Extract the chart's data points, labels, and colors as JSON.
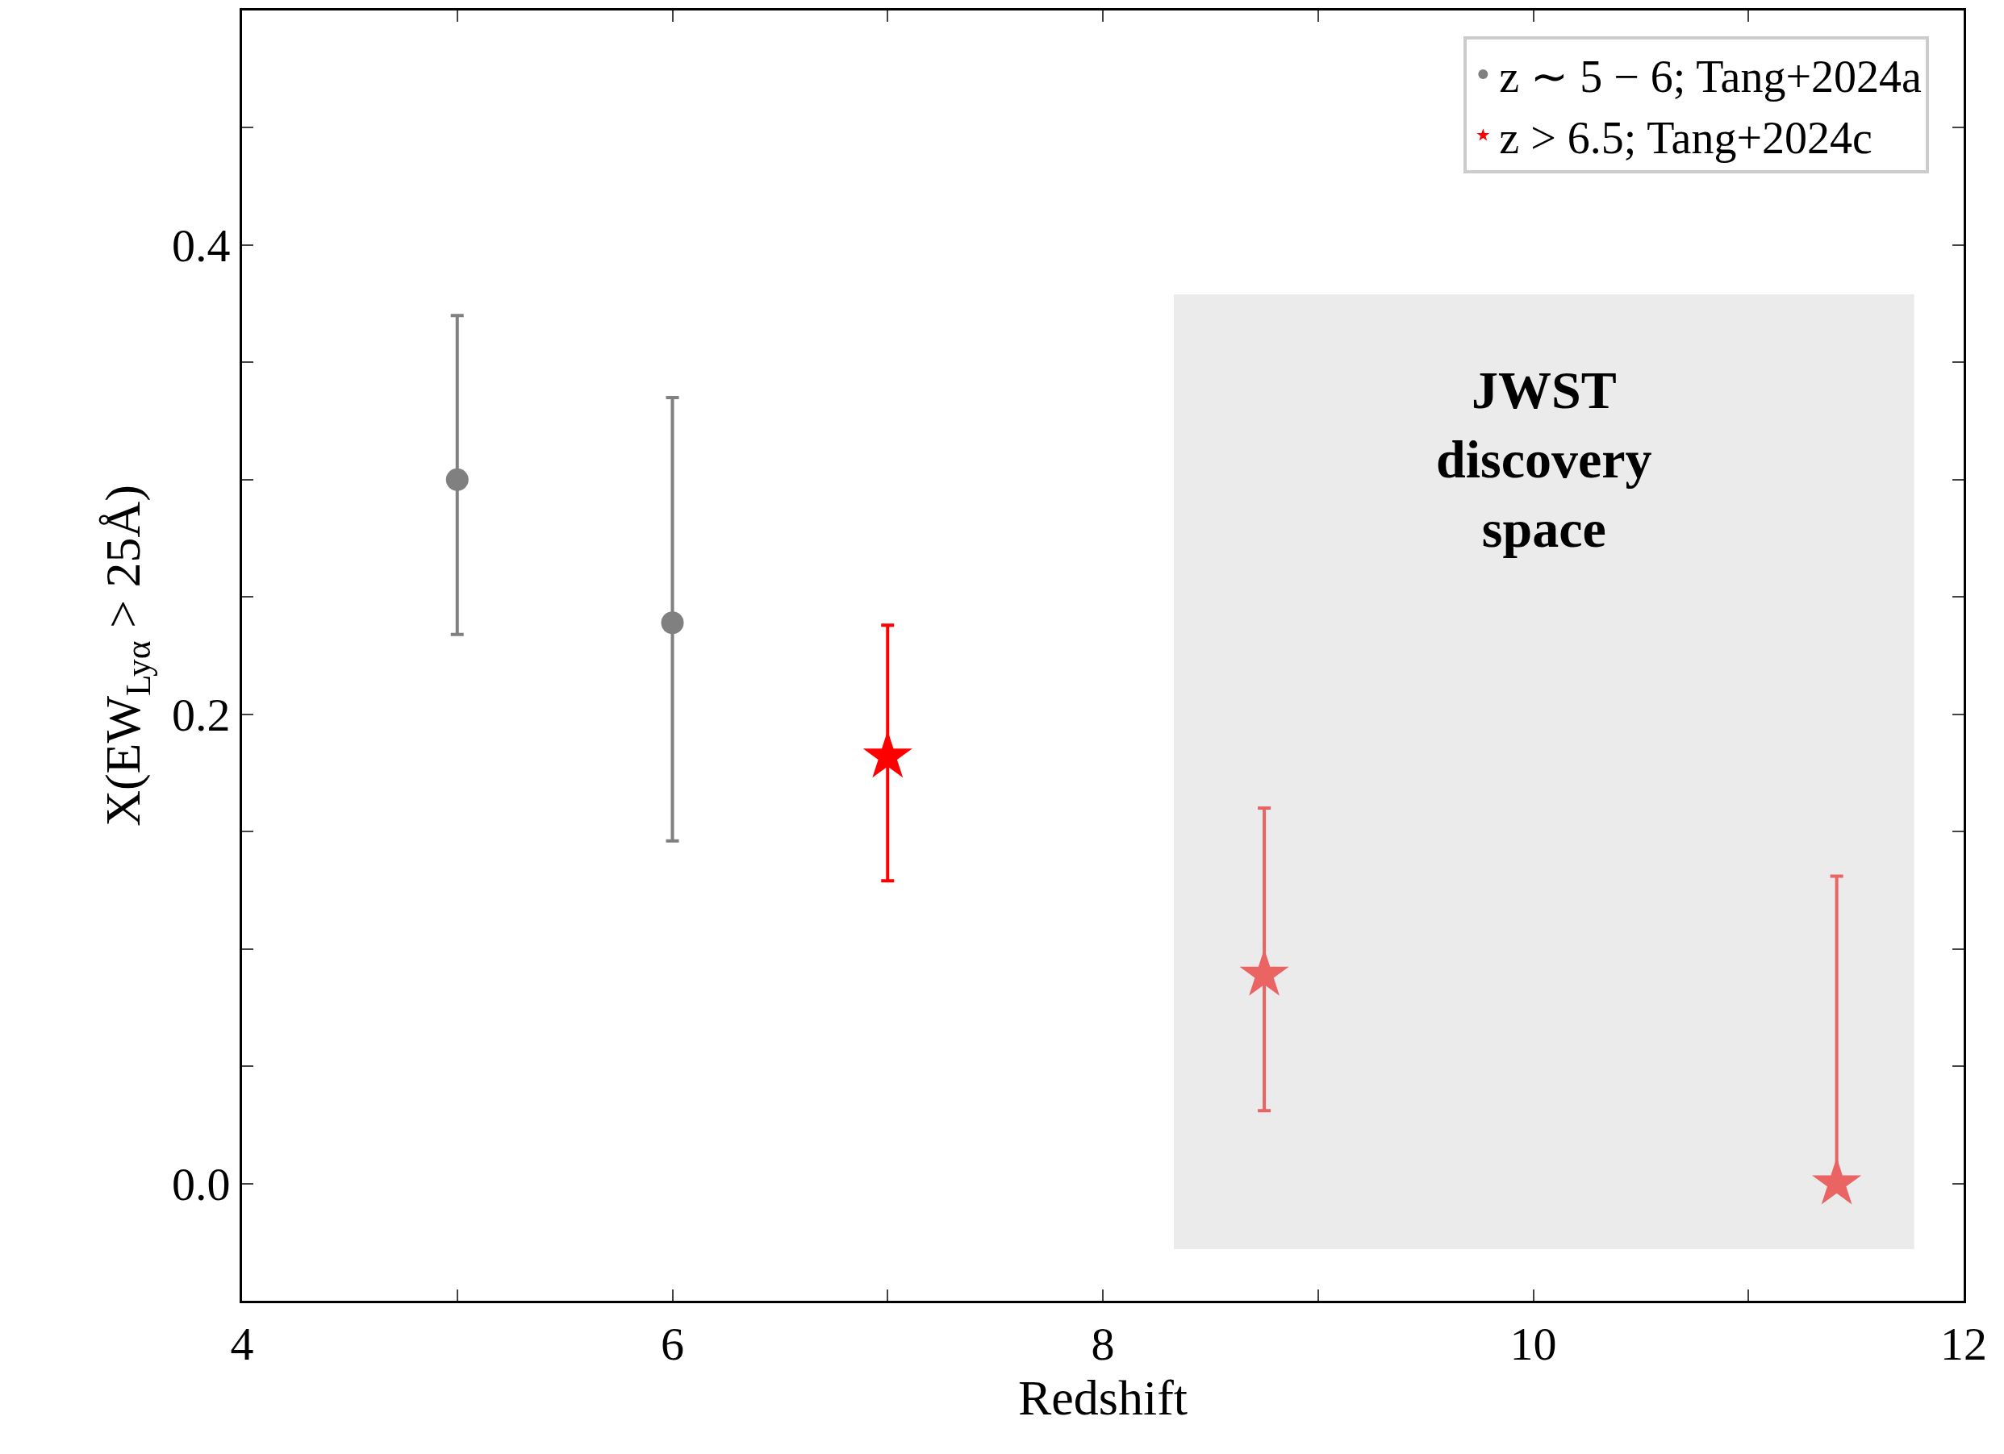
{
  "chart_data": {
    "type": "scatter",
    "xlabel": "Redshift",
    "ylabel": "X(EW$_{Lyα}$ > 25Å)",
    "xlim": [
      4,
      12
    ],
    "ylim": [
      -0.05,
      0.5
    ],
    "xticks": [
      4,
      {
        "value": 5,
        "label": null
      },
      6,
      {
        "value": 7,
        "label": null
      },
      8,
      {
        "value": 9,
        "label": null
      },
      10,
      {
        "value": 11,
        "label": null
      },
      12
    ],
    "yticks": [
      {
        "value": -0.05,
        "label": null
      },
      {
        "value": 0.0,
        "label": "0.0"
      },
      {
        "value": 0.05,
        "label": null
      },
      {
        "value": 0.1,
        "label": null
      },
      {
        "value": 0.15,
        "label": null
      },
      {
        "value": 0.2,
        "label": "0.2"
      },
      {
        "value": 0.25,
        "label": null
      },
      {
        "value": 0.3,
        "label": null
      },
      {
        "value": 0.35,
        "label": null
      },
      {
        "value": 0.4,
        "label": "0.4"
      },
      {
        "value": 0.45,
        "label": null
      }
    ],
    "series": [
      {
        "name": "z ∼ 5 − 6; Tang+2024a",
        "color": "#808080",
        "marker": "circle",
        "x": [
          5.0,
          6.0
        ],
        "values": [
          0.3,
          0.239
        ],
        "errors": [
          [
            0.234,
            0.37
          ],
          [
            0.146,
            0.335
          ]
        ]
      },
      {
        "name": "z > 6.5; Tang+2024c",
        "color": "#ff0000",
        "marker": "star",
        "x": [
          7.0
        ],
        "values": [
          0.182
        ],
        "errors": [
          [
            0.129,
            0.238
          ]
        ]
      },
      {
        "color": "#eb6464",
        "marker": "star",
        "x": [
          8.75,
          11.41
        ],
        "values": [
          0.089,
          0.0
        ],
        "errors": [
          [
            0.031,
            0.16
          ],
          [
            0.0,
            0.131
          ]
        ]
      }
    ],
    "bands": [
      {
        "axis": "x",
        "from": 8.33,
        "to": 11.77,
        "label": "JWST discovery space",
        "color": "#ebebeb"
      }
    ],
    "legend": "top right",
    "grid": false
  }
}
